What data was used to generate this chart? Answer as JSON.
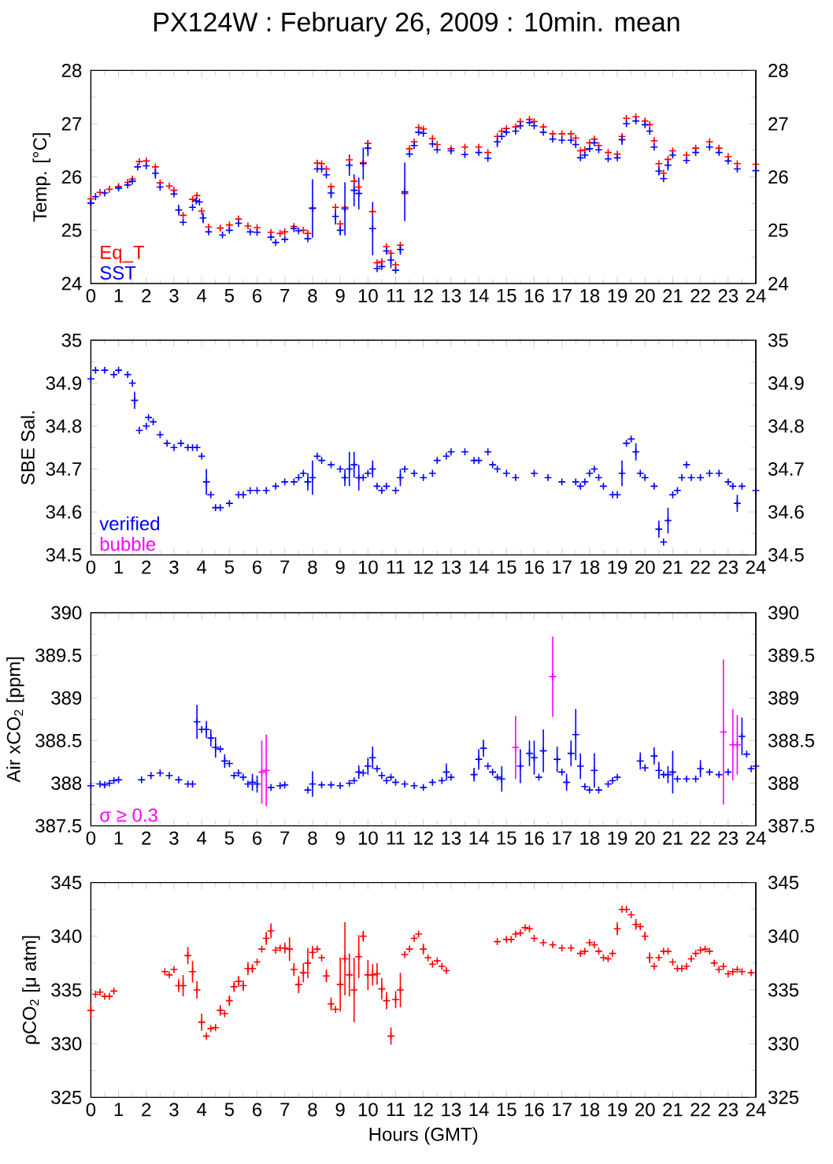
{
  "chart_data": [
    {
      "type": "scatter",
      "title": "PX124W : February 26, 2009 : 10min. mean",
      "ylabel": "Temp. [°C]",
      "marker": "cross",
      "legend": "bottom left",
      "xlim": [
        0,
        24
      ],
      "xticks": [
        0,
        1,
        2,
        3,
        4,
        5,
        6,
        7,
        8,
        9,
        10,
        11,
        12,
        13,
        14,
        15,
        16,
        17,
        18,
        19,
        20,
        21,
        22,
        23,
        24
      ],
      "ylim": [
        24,
        28
      ],
      "yticks": [
        24,
        25,
        26,
        27,
        28
      ],
      "y2lim": [
        24,
        28
      ],
      "y2ticks": [
        24,
        25,
        26,
        27,
        28
      ],
      "series": [
        {
          "name": "Eq_T",
          "color": "#ff0000",
          "x": [
            0,
            0.33,
            0.67,
            1,
            1.33,
            1.5,
            1.75,
            2,
            2.33,
            2.5,
            2.83,
            3,
            3.33,
            3.67,
            3.83,
            4,
            4.25,
            4.67,
            5,
            5.33,
            5.67,
            6,
            6.5,
            6.83,
            7,
            7.33,
            7.67,
            7.83,
            8,
            8.17,
            8.33,
            8.5,
            8.67,
            8.83,
            9,
            9.17,
            9.33,
            9.5,
            9.67,
            9.83,
            10,
            10.17,
            10.33,
            10.5,
            10.67,
            10.83,
            11,
            11.17,
            11.33,
            11.5,
            11.67,
            11.83,
            12,
            12.33,
            12.5,
            13,
            13.5,
            14,
            14.33,
            14.67,
            14.83,
            15,
            15.33,
            15.5,
            15.83,
            16,
            16.33,
            16.67,
            17,
            17.33,
            17.5,
            17.67,
            17.83,
            18,
            18.17,
            18.33,
            18.67,
            19,
            19.17,
            19.33,
            19.67,
            20,
            20.17,
            20.33,
            20.5,
            20.67,
            20.83,
            21,
            21.5,
            21.83,
            22.33,
            22.67,
            23,
            23.33,
            24
          ],
          "values": [
            25.59,
            25.71,
            25.77,
            25.82,
            25.9,
            25.96,
            26.29,
            26.3,
            26.19,
            25.89,
            25.83,
            25.75,
            25.28,
            25.58,
            25.65,
            25.36,
            25.06,
            25.04,
            25.1,
            25.21,
            25.08,
            25.05,
            24.96,
            24.94,
            24.97,
            25.07,
            25.0,
            24.94,
            25.42,
            26.26,
            26.25,
            26.15,
            25.82,
            25.43,
            25.12,
            25.43,
            26.32,
            25.92,
            25.81,
            26.27,
            26.63,
            25.35,
            24.39,
            24.41,
            24.69,
            24.57,
            24.35,
            24.72,
            25.69,
            26.53,
            26.66,
            26.93,
            26.9,
            26.72,
            26.61,
            26.53,
            26.56,
            26.56,
            26.46,
            26.76,
            26.86,
            26.91,
            26.94,
            27.04,
            27.08,
            27.04,
            26.94,
            26.81,
            26.81,
            26.81,
            26.73,
            26.49,
            26.51,
            26.64,
            26.71,
            26.59,
            26.46,
            26.43,
            26.76,
            27.1,
            27.13,
            27.05,
            26.98,
            26.68,
            26.25,
            26.07,
            26.33,
            26.49,
            26.41,
            26.54,
            26.66,
            26.54,
            26.38,
            26.25,
            26.24
          ]
        },
        {
          "name": "SST",
          "color": "#0000ff",
          "x": [
            0,
            0.17,
            0.5,
            1,
            1.33,
            1.5,
            1.69,
            2,
            2.33,
            2.5,
            3,
            3.17,
            3.33,
            3.67,
            3.8,
            3.92,
            4.05,
            4.25,
            4.75,
            5,
            5.33,
            5.75,
            6,
            6.5,
            6.67,
            7,
            7.33,
            7.5,
            7.83,
            8,
            8.17,
            8.33,
            8.5,
            8.67,
            8.83,
            9,
            9.17,
            9.33,
            9.5,
            9.67,
            9.83,
            10,
            10.17,
            10.33,
            10.5,
            10.67,
            10.83,
            11,
            11.17,
            11.33,
            11.5,
            11.67,
            11.83,
            12,
            12.33,
            12.5,
            13,
            13.5,
            14,
            14.33,
            14.67,
            14.83,
            15,
            15.33,
            15.5,
            15.83,
            16,
            16.33,
            16.67,
            17,
            17.33,
            17.5,
            17.67,
            17.83,
            18,
            18.17,
            18.33,
            18.67,
            19,
            19.17,
            19.33,
            19.67,
            20,
            20.17,
            20.33,
            20.5,
            20.67,
            20.83,
            21,
            21.5,
            21.83,
            22.33,
            22.67,
            23,
            23.33,
            24
          ],
          "values": [
            25.51,
            25.63,
            25.7,
            25.79,
            25.85,
            25.92,
            26.19,
            26.21,
            26.07,
            25.81,
            25.68,
            25.38,
            25.15,
            25.43,
            25.55,
            25.53,
            25.23,
            24.97,
            24.91,
            25.0,
            25.13,
            24.97,
            24.96,
            24.87,
            24.77,
            24.83,
            25.03,
            24.99,
            24.84,
            25.41,
            26.15,
            26.15,
            26.04,
            25.7,
            25.26,
            25.0,
            25.4,
            26.22,
            25.75,
            25.69,
            26.25,
            26.54,
            25.03,
            24.28,
            24.32,
            24.61,
            24.44,
            24.25,
            24.64,
            25.72,
            26.43,
            26.59,
            26.84,
            26.82,
            26.62,
            26.51,
            26.49,
            26.42,
            26.46,
            26.35,
            26.66,
            26.76,
            26.84,
            26.86,
            26.96,
            27.02,
            26.96,
            26.84,
            26.71,
            26.69,
            26.69,
            26.61,
            26.36,
            26.41,
            26.53,
            26.64,
            26.51,
            26.34,
            26.36,
            26.7,
            27.0,
            27.05,
            26.98,
            26.86,
            26.56,
            26.11,
            25.97,
            26.22,
            26.41,
            26.31,
            26.46,
            26.56,
            26.46,
            26.3,
            26.15,
            26.12
          ],
          "errors": [
            0.05,
            null,
            null,
            null,
            null,
            null,
            null,
            null,
            0.1,
            null,
            null,
            0.1,
            null,
            null,
            null,
            null,
            0.1,
            null,
            null,
            null,
            null,
            null,
            null,
            null,
            null,
            null,
            null,
            null,
            null,
            0.55,
            null,
            null,
            null,
            0.1,
            0.15,
            0.1,
            0.5,
            0.2,
            0.3,
            0.3,
            0.3,
            0.15,
            0.5,
            null,
            null,
            null,
            0.15,
            null,
            0.1,
            0.55,
            null,
            null,
            null,
            null,
            null,
            null,
            null,
            null,
            null,
            null,
            0.1,
            null,
            null,
            null,
            null,
            null,
            null,
            null,
            null,
            null,
            null,
            null,
            null,
            null,
            null,
            null,
            null,
            null,
            null,
            0.1,
            null,
            null,
            null,
            null,
            null,
            0.08,
            null,
            0.1,
            null,
            null,
            null,
            null,
            null,
            null,
            null,
            null
          ]
        }
      ]
    },
    {
      "type": "scatter",
      "ylabel": "SBE Sal.",
      "marker": "cross",
      "legend": "bottom left",
      "xlim": [
        0,
        24
      ],
      "xticks": [
        0,
        1,
        2,
        3,
        4,
        5,
        6,
        7,
        8,
        9,
        10,
        11,
        12,
        13,
        14,
        15,
        16,
        17,
        18,
        19,
        20,
        21,
        22,
        23,
        24
      ],
      "ylim": [
        34.5,
        35
      ],
      "yticks": [
        34.5,
        34.6,
        34.7,
        34.8,
        34.9,
        35
      ],
      "y2lim": [
        34.5,
        35
      ],
      "y2ticks": [
        34.5,
        34.6,
        34.7,
        34.8,
        34.9,
        35
      ],
      "series": [
        {
          "name": "verified",
          "color": "#0000ff",
          "x": [
            0,
            0.17,
            0.5,
            0.83,
            1,
            1.33,
            1.5,
            1.58,
            1.75,
            2,
            2.08,
            2.25,
            2.5,
            2.75,
            3,
            3.25,
            3.5,
            3.67,
            3.83,
            4,
            4.17,
            4.33,
            4.5,
            4.67,
            5,
            5.33,
            5.5,
            5.75,
            6,
            6.33,
            6.67,
            7,
            7.33,
            7.5,
            7.67,
            7.83,
            8,
            8.17,
            8.33,
            8.67,
            9,
            9.17,
            9.33,
            9.5,
            9.67,
            9.83,
            10,
            10.17,
            10.33,
            10.5,
            10.67,
            11,
            11.17,
            11.33,
            11.67,
            12,
            12.33,
            12.5,
            12.83,
            13,
            13.5,
            13.83,
            14,
            14.33,
            14.5,
            14.67,
            15,
            15.33,
            16,
            16.5,
            17,
            17.5,
            17.67,
            17.83,
            18,
            18.17,
            18.33,
            18.5,
            18.83,
            19,
            19.17,
            19.33,
            19.5,
            19.67,
            19.83,
            20,
            20.33,
            20.5,
            20.67,
            20.83,
            21,
            21.17,
            21.33,
            21.5,
            21.67,
            22,
            22.33,
            22.67,
            23,
            23.17,
            23.33,
            23.5,
            24
          ],
          "values": [
            34.91,
            34.93,
            34.93,
            34.92,
            34.93,
            34.92,
            34.9,
            34.86,
            34.79,
            34.8,
            34.82,
            34.81,
            34.78,
            34.76,
            34.75,
            34.76,
            34.75,
            34.75,
            34.75,
            34.73,
            34.67,
            34.64,
            34.61,
            34.61,
            34.62,
            34.64,
            34.64,
            34.65,
            34.65,
            34.65,
            34.66,
            34.67,
            34.67,
            34.68,
            34.69,
            34.67,
            34.68,
            34.73,
            34.72,
            34.71,
            34.7,
            34.68,
            34.7,
            34.71,
            34.68,
            34.68,
            34.69,
            34.7,
            34.66,
            34.65,
            34.66,
            34.65,
            34.68,
            34.7,
            34.69,
            34.68,
            34.69,
            34.72,
            34.73,
            34.74,
            34.74,
            34.72,
            34.72,
            34.74,
            34.71,
            34.7,
            34.69,
            34.68,
            34.69,
            34.68,
            34.67,
            34.67,
            34.66,
            34.67,
            34.69,
            34.7,
            34.68,
            34.66,
            34.64,
            34.64,
            34.69,
            34.76,
            34.77,
            34.74,
            34.69,
            34.68,
            34.66,
            34.56,
            34.53,
            34.58,
            34.64,
            34.65,
            34.68,
            34.71,
            34.68,
            34.68,
            34.69,
            34.69,
            34.67,
            34.66,
            34.62,
            34.66,
            34.65
          ],
          "errors": [
            null,
            null,
            null,
            null,
            null,
            null,
            null,
            0.02,
            null,
            null,
            null,
            null,
            null,
            null,
            null,
            null,
            null,
            null,
            null,
            null,
            0.03,
            null,
            null,
            null,
            null,
            null,
            null,
            null,
            null,
            null,
            null,
            null,
            null,
            null,
            null,
            0.02,
            0.04,
            null,
            null,
            null,
            null,
            0.02,
            0.04,
            0.03,
            0.03,
            null,
            null,
            0.02,
            null,
            null,
            null,
            null,
            0.02,
            null,
            null,
            null,
            null,
            null,
            null,
            null,
            null,
            null,
            null,
            null,
            null,
            null,
            null,
            null,
            null,
            null,
            null,
            null,
            null,
            null,
            null,
            null,
            null,
            null,
            null,
            null,
            0.03,
            null,
            null,
            0.02,
            null,
            null,
            null,
            0.02,
            null,
            0.03,
            null,
            null,
            null,
            null,
            null,
            null,
            null,
            null,
            null,
            null,
            0.02,
            null,
            null
          ]
        },
        {
          "name": "bubble",
          "color": "#ff00ff"
        }
      ]
    },
    {
      "type": "scatter",
      "ylabel": "Air xCO$_{2}$ [ppm]",
      "marker": "cross",
      "legend": "bottom left",
      "xlim": [
        0,
        24
      ],
      "xticks": [
        0,
        1,
        2,
        3,
        4,
        5,
        6,
        7,
        8,
        9,
        10,
        11,
        12,
        13,
        14,
        15,
        16,
        17,
        18,
        19,
        20,
        21,
        22,
        23,
        24
      ],
      "ylim": [
        387.5,
        390
      ],
      "yticks": [
        387.5,
        388,
        388.5,
        389,
        389.5,
        390
      ],
      "y2lim": [
        387.5,
        390
      ],
      "y2ticks": [
        387.5,
        388,
        388.5,
        389,
        389.5,
        390
      ],
      "series": [
        {
          "color": "#0000ff",
          "x": [
            0,
            0.33,
            0.5,
            0.67,
            0.83,
            1,
            1.83,
            2.17,
            2.5,
            2.83,
            3.17,
            3.5,
            3.67,
            3.83,
            4,
            4.17,
            4.33,
            4.5,
            4.67,
            4.83,
            5,
            5.17,
            5.33,
            5.5,
            5.67,
            5.83,
            6,
            6.5,
            6.83,
            7,
            7.83,
            8,
            8.33,
            8.67,
            9,
            9.33,
            9.5,
            9.67,
            9.83,
            10,
            10.17,
            10.33,
            10.5,
            10.67,
            10.83,
            11,
            11.33,
            11.67,
            12,
            12.33,
            12.67,
            12.83,
            13,
            13.83,
            14,
            14.17,
            14.33,
            14.5,
            14.67,
            14.83,
            15.5,
            15.83,
            16,
            16.17,
            16.33,
            16.83,
            17,
            17.17,
            17.33,
            17.5,
            17.67,
            17.83,
            18,
            18.17,
            18.33,
            18.67,
            18.83,
            19,
            19.83,
            20,
            20.33,
            20.5,
            20.67,
            20.83,
            21,
            21.17,
            21.5,
            21.83,
            22,
            22.33,
            22.67,
            23,
            23.5,
            23.67,
            23.83,
            24
          ],
          "values": [
            387.97,
            387.99,
            387.98,
            388.0,
            388.03,
            388.04,
            388.04,
            388.09,
            388.12,
            388.09,
            388.04,
            387.99,
            387.99,
            388.72,
            388.63,
            388.63,
            388.53,
            388.42,
            388.4,
            388.26,
            388.23,
            388.09,
            388.12,
            388.07,
            387.99,
            388.01,
            387.99,
            387.95,
            387.97,
            387.98,
            387.92,
            387.99,
            387.98,
            387.98,
            387.97,
            388.0,
            388.03,
            388.13,
            388.12,
            388.2,
            388.3,
            388.17,
            388.09,
            388.03,
            388.07,
            388.01,
            387.99,
            387.97,
            387.95,
            388.01,
            388.03,
            388.13,
            388.07,
            388.1,
            388.28,
            388.41,
            388.2,
            388.13,
            388.07,
            388.05,
            388.2,
            388.35,
            388.3,
            388.07,
            388.38,
            388.28,
            388.13,
            388.01,
            388.35,
            388.57,
            388.2,
            387.96,
            387.92,
            388.15,
            387.92,
            387.99,
            388.03,
            388.07,
            388.26,
            388.18,
            388.32,
            388.15,
            388.1,
            388.1,
            388.13,
            388.05,
            388.05,
            388.05,
            388.17,
            388.13,
            388.1,
            388.13,
            388.55,
            388.34,
            388.17,
            388.2
          ],
          "errors": [
            null,
            null,
            null,
            null,
            null,
            null,
            null,
            null,
            null,
            null,
            null,
            null,
            null,
            0.2,
            null,
            0.1,
            0.1,
            0.12,
            null,
            0.08,
            null,
            null,
            null,
            null,
            null,
            0.1,
            0.1,
            null,
            null,
            null,
            null,
            0.15,
            null,
            null,
            null,
            null,
            null,
            0.08,
            null,
            0.1,
            0.13,
            null,
            null,
            null,
            null,
            null,
            null,
            null,
            null,
            null,
            null,
            0.1,
            null,
            0.08,
            0.12,
            0.1,
            null,
            null,
            null,
            0.15,
            0.2,
            0.15,
            0.2,
            null,
            0.25,
            0.15,
            null,
            0.1,
            0.15,
            0.3,
            0.15,
            null,
            null,
            0.2,
            null,
            null,
            null,
            null,
            0.1,
            null,
            0.1,
            0.1,
            null,
            0.1,
            0.25,
            null,
            null,
            null,
            0.1,
            null,
            null,
            null,
            0.22,
            null,
            null,
            null
          ]
        },
        {
          "name": "σ ≥ 0.3",
          "color": "#ff00ff",
          "x": [
            6.17,
            6.33,
            15.33,
            16.67,
            22.83,
            23.17,
            23.33
          ],
          "values": [
            388.13,
            388.15,
            388.42,
            389.25,
            388.6,
            388.45,
            388.45
          ],
          "errors": [
            0.37,
            0.42,
            0.37,
            0.47,
            0.85,
            0.42,
            0.35
          ]
        }
      ]
    },
    {
      "type": "scatter",
      "ylabel": "ρCO$_{2}$ [μ atm]",
      "xlabel": "Hours (GMT)",
      "marker": "cross",
      "xlim": [
        0,
        24
      ],
      "xticks": [
        0,
        1,
        2,
        3,
        4,
        5,
        6,
        7,
        8,
        9,
        10,
        11,
        12,
        13,
        14,
        15,
        16,
        17,
        18,
        19,
        20,
        21,
        22,
        23,
        24
      ],
      "ylim": [
        325,
        345
      ],
      "yticks": [
        325,
        330,
        335,
        340,
        345
      ],
      "y2lim": [
        325,
        345
      ],
      "y2ticks": [
        325,
        330,
        335,
        340,
        345
      ],
      "series": [
        {
          "color": "#ff0000",
          "x": [
            0,
            0.17,
            0.33,
            0.5,
            0.67,
            0.83,
            2.67,
            2.83,
            3,
            3.17,
            3.33,
            3.5,
            3.67,
            3.83,
            4,
            4.17,
            4.33,
            4.5,
            4.67,
            4.83,
            5,
            5.17,
            5.33,
            5.5,
            5.67,
            5.83,
            6,
            6.17,
            6.33,
            6.5,
            6.67,
            6.83,
            7,
            7.17,
            7.33,
            7.5,
            7.67,
            7.83,
            8,
            8.17,
            8.33,
            8.5,
            8.67,
            8.83,
            9,
            9.17,
            9.33,
            9.5,
            9.67,
            9.83,
            10,
            10.17,
            10.33,
            10.5,
            10.67,
            10.83,
            11,
            11.17,
            11.33,
            11.5,
            11.67,
            11.83,
            12,
            12.17,
            12.33,
            12.5,
            12.67,
            12.83,
            14.67,
            15,
            15.17,
            15.33,
            15.5,
            15.67,
            15.83,
            16,
            16.33,
            16.67,
            17,
            17.33,
            17.67,
            17.83,
            18,
            18.17,
            18.33,
            18.5,
            18.67,
            18.83,
            19,
            19.17,
            19.33,
            19.5,
            19.67,
            19.83,
            20,
            20.17,
            20.33,
            20.5,
            20.67,
            20.83,
            21,
            21.17,
            21.33,
            21.5,
            21.67,
            21.83,
            22,
            22.17,
            22.33,
            22.5,
            22.67,
            22.83,
            23,
            23.17,
            23.33,
            23.5,
            23.83
          ],
          "values": [
            333.1,
            334.6,
            334.8,
            334.4,
            334.4,
            334.9,
            336.7,
            336.4,
            336.9,
            335.4,
            335.4,
            338.2,
            336.7,
            335.0,
            332.0,
            330.7,
            331.4,
            331.5,
            333.1,
            332.8,
            334.0,
            335.3,
            335.8,
            335.4,
            337.0,
            337.0,
            337.6,
            338.8,
            339.8,
            340.5,
            338.7,
            338.9,
            338.9,
            338.8,
            336.9,
            335.5,
            336.6,
            337.5,
            338.5,
            338.8,
            338.0,
            336.3,
            333.7,
            333.2,
            335.5,
            337.9,
            336.4,
            335.0,
            338.1,
            340.0,
            336.4,
            336.4,
            336.5,
            335.1,
            334.0,
            330.7,
            334.1,
            335.0,
            338.3,
            338.8,
            339.8,
            340.2,
            338.8,
            338.0,
            337.4,
            337.7,
            337.2,
            336.8,
            339.5,
            339.7,
            339.7,
            340.2,
            340.3,
            340.8,
            340.7,
            339.8,
            339.4,
            339.2,
            338.9,
            338.9,
            338.4,
            338.6,
            339.4,
            339.2,
            338.6,
            338.0,
            337.9,
            338.4,
            340.7,
            342.5,
            342.5,
            342.0,
            341.1,
            340.9,
            340.0,
            338.0,
            337.2,
            338.0,
            338.6,
            338.6,
            337.6,
            337.0,
            337.0,
            337.2,
            337.9,
            338.4,
            338.7,
            338.8,
            338.6,
            337.5,
            336.9,
            337.2,
            336.5,
            336.7,
            336.9,
            336.7,
            336.6
          ],
          "errors": [
            0.7,
            null,
            null,
            null,
            null,
            null,
            null,
            null,
            null,
            0.6,
            1,
            0.8,
            1,
            0.8,
            0.8,
            null,
            null,
            null,
            0.5,
            null,
            0.5,
            0.5,
            0.5,
            0.5,
            0.6,
            0.4,
            null,
            null,
            0.6,
            0.7,
            null,
            null,
            0.5,
            1.1,
            0.6,
            0.8,
            0.9,
            1.4,
            0.6,
            null,
            null,
            0.6,
            0.6,
            null,
            2.5,
            3.4,
            2,
            3,
            2,
            0.5,
            1.4,
            1,
            1,
            1,
            0.8,
            0.8,
            0.8,
            1.6,
            null,
            null,
            null,
            null,
            0.5,
            null,
            null,
            null,
            null,
            null,
            null,
            null,
            null,
            null,
            null,
            null,
            null,
            null,
            null,
            null,
            null,
            null,
            null,
            null,
            null,
            null,
            null,
            null,
            null,
            null,
            0.6,
            null,
            null,
            null,
            0.5,
            null,
            0.4,
            0.5,
            null,
            null,
            null,
            null,
            null,
            null,
            null,
            null,
            null,
            null,
            null,
            null,
            null,
            null,
            null,
            null,
            null,
            null,
            null,
            null,
            null
          ]
        }
      ]
    }
  ]
}
